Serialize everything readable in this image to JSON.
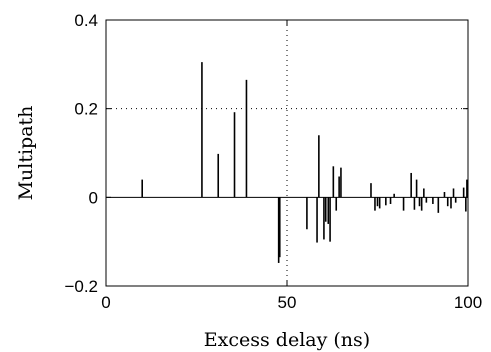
{
  "chart_data": {
    "type": "bar",
    "xlabel": "Excess delay (ns)",
    "ylabel": "Multipath",
    "xlim": [
      0,
      100
    ],
    "ylim": [
      -0.2,
      0.4
    ],
    "xticks": [
      0,
      50,
      100
    ],
    "yticks": [
      -0.2,
      0,
      0.2,
      0.4
    ],
    "xtick_labels": [
      "0",
      "50",
      "100"
    ],
    "ytick_labels": [
      "−0.2",
      "0",
      "0.2",
      "0.4"
    ],
    "grid": "dotted",
    "colors": {
      "stem": "#000000",
      "axis": "#000000",
      "grid": "#000000"
    },
    "points": [
      {
        "x": 10.0,
        "y": 0.04
      },
      {
        "x": 26.5,
        "y": 0.305
      },
      {
        "x": 31.0,
        "y": 0.098
      },
      {
        "x": 35.5,
        "y": 0.192
      },
      {
        "x": 38.8,
        "y": 0.265
      },
      {
        "x": 47.7,
        "y": -0.148
      },
      {
        "x": 48.0,
        "y": -0.135
      },
      {
        "x": 55.5,
        "y": -0.072
      },
      {
        "x": 58.3,
        "y": -0.102
      },
      {
        "x": 58.8,
        "y": 0.14
      },
      {
        "x": 60.2,
        "y": -0.095
      },
      {
        "x": 60.7,
        "y": -0.055
      },
      {
        "x": 61.4,
        "y": -0.06
      },
      {
        "x": 61.9,
        "y": -0.1
      },
      {
        "x": 62.8,
        "y": 0.07
      },
      {
        "x": 63.6,
        "y": -0.03
      },
      {
        "x": 64.4,
        "y": 0.047
      },
      {
        "x": 64.9,
        "y": 0.067
      },
      {
        "x": 73.2,
        "y": 0.032
      },
      {
        "x": 74.3,
        "y": -0.03
      },
      {
        "x": 75.0,
        "y": -0.02
      },
      {
        "x": 75.6,
        "y": -0.025
      },
      {
        "x": 77.3,
        "y": -0.018
      },
      {
        "x": 78.6,
        "y": -0.015
      },
      {
        "x": 79.6,
        "y": 0.008
      },
      {
        "x": 82.2,
        "y": -0.03
      },
      {
        "x": 84.3,
        "y": 0.055
      },
      {
        "x": 85.2,
        "y": -0.028
      },
      {
        "x": 85.8,
        "y": 0.04
      },
      {
        "x": 86.6,
        "y": -0.02
      },
      {
        "x": 87.2,
        "y": -0.03
      },
      {
        "x": 87.8,
        "y": 0.02
      },
      {
        "x": 88.5,
        "y": -0.012
      },
      {
        "x": 90.3,
        "y": -0.015
      },
      {
        "x": 91.8,
        "y": -0.035
      },
      {
        "x": 93.5,
        "y": 0.012
      },
      {
        "x": 94.4,
        "y": -0.02
      },
      {
        "x": 95.3,
        "y": -0.025
      },
      {
        "x": 96.0,
        "y": 0.02
      },
      {
        "x": 96.6,
        "y": -0.012
      },
      {
        "x": 98.8,
        "y": 0.022
      },
      {
        "x": 99.4,
        "y": -0.032
      },
      {
        "x": 99.7,
        "y": 0.04
      }
    ]
  }
}
